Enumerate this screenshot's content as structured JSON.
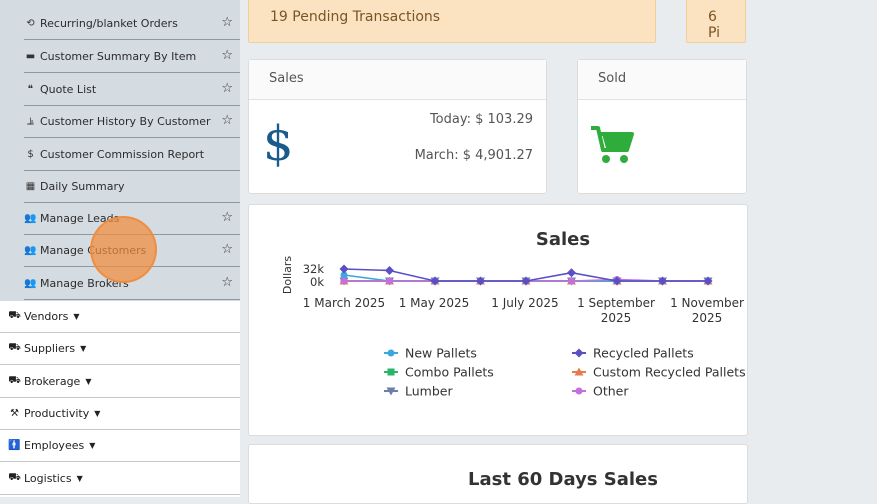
{
  "sidebar": {
    "sub_items": [
      {
        "label": "Recurring/blanket Orders",
        "icon": "sync-icon",
        "starred": true
      },
      {
        "label": "Customer Summary By Item",
        "icon": "pallet-icon",
        "starred": true
      },
      {
        "label": "Quote List",
        "icon": "quote-icon",
        "starred": true
      },
      {
        "label": "Customer History By Customer",
        "icon": "history-icon",
        "starred": true
      },
      {
        "label": "Customer Commission Report",
        "icon": "dollar-icon",
        "starred": false
      },
      {
        "label": "Daily Summary",
        "icon": "table-icon",
        "starred": false
      },
      {
        "label": "Manage Leads",
        "icon": "users-icon",
        "starred": true
      },
      {
        "label": "Manage Customers",
        "icon": "users-icon",
        "starred": true
      },
      {
        "label": "Manage Brokers",
        "icon": "users-icon",
        "starred": true
      }
    ],
    "main_items": [
      {
        "label": "Vendors",
        "icon": "truck-icon"
      },
      {
        "label": "Suppliers",
        "icon": "truck-loading-icon"
      },
      {
        "label": "Brokerage",
        "icon": "truck-icon"
      },
      {
        "label": "Productivity",
        "icon": "hammer-icon"
      },
      {
        "label": "Employees",
        "icon": "person-icon"
      },
      {
        "label": "Logistics",
        "icon": "truck-icon"
      }
    ]
  },
  "alerts": {
    "pending": "19 Pending Transactions",
    "second": "6 Pi"
  },
  "sales_card": {
    "title": "Sales",
    "icon": "dollar-sign-icon",
    "today": "Today: $ 103.29",
    "month": "March: $ 4,901.27"
  },
  "sold_card": {
    "title": "Sold",
    "icon": "shopping-cart-icon"
  },
  "colors": {
    "accent_green": "#2eac3c",
    "dollar_blue": "#1b5b8c",
    "alert_bg": "#fbe3c1"
  },
  "chart_data": {
    "type": "line",
    "title": "Sales",
    "ylabel": "Dollars",
    "yticks": [
      "32k",
      "0k"
    ],
    "ylim": [
      0,
      32000
    ],
    "xticks": [
      "1 March 2025",
      "1 May 2025",
      "1 July 2025",
      "1 September 2025",
      "1 November 2025"
    ],
    "x": [
      "2025-03-01",
      "2025-04-01",
      "2025-05-01",
      "2025-06-01",
      "2025-07-01",
      "2025-08-01",
      "2025-09-01",
      "2025-10-01",
      "2025-11-01"
    ],
    "series": [
      {
        "name": "New Pallets",
        "color": "#3aa7e0",
        "marker": "circle",
        "values": [
          16000,
          0,
          0,
          0,
          0,
          0,
          0,
          0,
          0
        ]
      },
      {
        "name": "Recycled Pallets",
        "color": "#5a4fc4",
        "marker": "diamond",
        "values": [
          32000,
          28000,
          0,
          0,
          0,
          22000,
          0,
          0,
          0
        ]
      },
      {
        "name": "Combo Pallets",
        "color": "#27b56a",
        "marker": "square",
        "values": [
          0,
          0,
          0,
          0,
          0,
          0,
          0,
          0,
          0
        ]
      },
      {
        "name": "Custom Recycled Pallets",
        "color": "#e57b4f",
        "marker": "triangle",
        "values": [
          0,
          0,
          0,
          0,
          0,
          0,
          0,
          0,
          0
        ]
      },
      {
        "name": "Lumber",
        "color": "#6b7fa8",
        "marker": "triangle-down",
        "values": [
          0,
          0,
          0,
          0,
          0,
          0,
          0,
          0,
          0
        ]
      },
      {
        "name": "Other",
        "color": "#c46fdc",
        "marker": "circle",
        "values": [
          0,
          0,
          0,
          0,
          0,
          0,
          4000,
          0,
          0
        ]
      }
    ]
  },
  "last60": {
    "title": "Last 60 Days Sales"
  }
}
